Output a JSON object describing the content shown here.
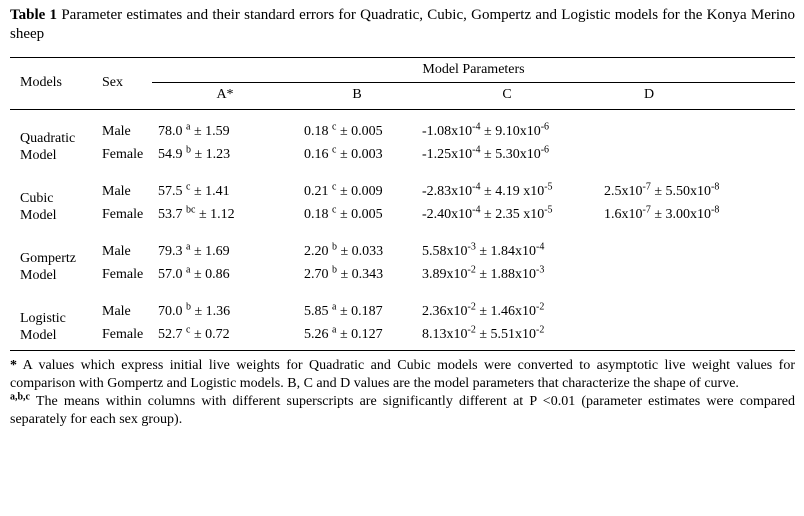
{
  "colors": {
    "background": "#ffffff",
    "text": "#000000",
    "rule": "#000000"
  },
  "caption": {
    "label": "Table 1",
    "text": "Parameter estimates and their standard errors for Quadratic, Cubic, Gompertz and Logistic models for the Konya Merino sheep"
  },
  "table": {
    "headers": {
      "models": "Models",
      "sex": "Sex",
      "group": "Model Parameters",
      "params": [
        "A*",
        "B",
        "C",
        "D"
      ]
    },
    "groups": [
      {
        "model": "Quadratic Model",
        "rows": [
          {
            "sex": "Male",
            "values": {
              "A": "78.0 ^{a} ± 1.59",
              "B": "0.18 ^{c} ± 0.005",
              "C": "-1.08x10^{-4} ± 9.10x10^{-6}",
              "D": ""
            }
          },
          {
            "sex": "Female",
            "values": {
              "A": "54.9 ^{b} ± 1.23",
              "B": "0.16 ^{c} ± 0.003",
              "C": "-1.25x10^{-4} ± 5.30x10^{-6}",
              "D": ""
            }
          }
        ]
      },
      {
        "model": "Cubic Model",
        "rows": [
          {
            "sex": "Male",
            "values": {
              "A": "57.5 ^{c} ± 1.41",
              "B": "0.21 ^{c} ± 0.009",
              "C": "-2.83x10^{-4} ± 4.19 x10^{-5}",
              "D": "2.5x10^{-7} ± 5.50x10^{-8}"
            }
          },
          {
            "sex": "Female",
            "values": {
              "A": "53.7 ^{bc} ± 1.12",
              "B": "0.18 ^{c} ± 0.005",
              "C": "-2.40x10^{-4} ± 2.35 x10^{-5}",
              "D": "1.6x10^{-7} ± 3.00x10^{-8}"
            }
          }
        ]
      },
      {
        "model": "Gompertz Model",
        "rows": [
          {
            "sex": "Male",
            "values": {
              "A": "79.3 ^{a} ± 1.69",
              "B": "2.20 ^{b} ± 0.033",
              "C": "5.58x10^{-3} ± 1.84x10^{-4}",
              "D": ""
            }
          },
          {
            "sex": "Female",
            "values": {
              "A": "57.0 ^{a} ± 0.86",
              "B": "2.70 ^{b} ± 0.343",
              "C": "3.89x10^{-2} ± 1.88x10^{-3}",
              "D": ""
            }
          }
        ]
      },
      {
        "model": "Logistic Model",
        "rows": [
          {
            "sex": "Male",
            "values": {
              "A": "70.0 ^{b} ± 1.36",
              "B": "5.85 ^{a} ± 0.187",
              "C": "2.36x10^{-2} ± 1.46x10^{-2}",
              "D": ""
            }
          },
          {
            "sex": "Female",
            "values": {
              "A": "52.7 ^{c} ± 0.72",
              "B": "5.26 ^{a} ± 0.127",
              "C": "8.13x10^{-2} ± 5.51x10^{-2}",
              "D": ""
            }
          }
        ]
      }
    ]
  },
  "footnotes": [
    {
      "marker": "*",
      "text": "A values which express initial live weights for Quadratic and Cubic models were converted to asymptotic live weight values for comparison with Gompertz and Logistic models. B, C and D values are the model parameters that characterize the shape of curve."
    },
    {
      "marker": "a,b,c",
      "text": "The means within columns with different superscripts are significantly different at P <0.01 (parameter estimates were compared separately for each sex group)."
    }
  ]
}
